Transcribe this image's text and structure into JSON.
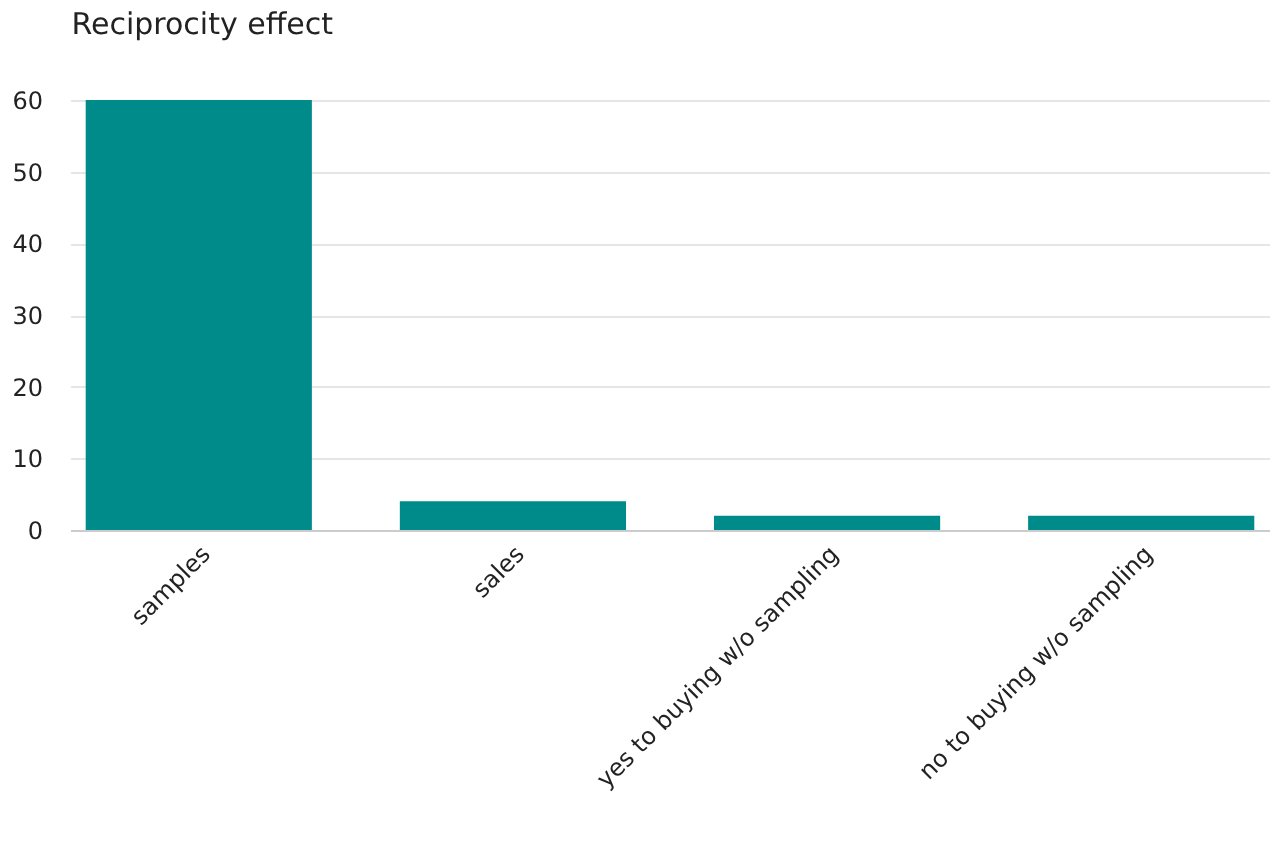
{
  "chart_data": {
    "type": "bar",
    "title": "Reciprocity effect",
    "categories": [
      "samples",
      "sales",
      "yes to buying w/o sampling",
      "no to buying w/o sampling"
    ],
    "values": [
      60,
      4,
      2,
      2
    ],
    "color": "#008b8b",
    "ylim": [
      0,
      60
    ],
    "yticks": [
      0,
      10,
      20,
      30,
      40,
      50,
      60
    ],
    "grid": "y"
  }
}
